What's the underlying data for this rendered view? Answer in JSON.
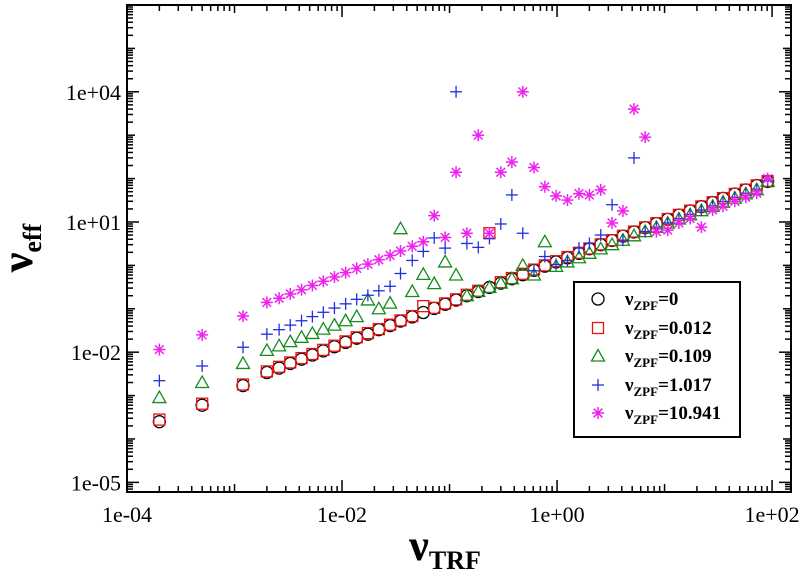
{
  "chart_data": {
    "type": "scatter",
    "title": "",
    "xscale": "log",
    "yscale": "log",
    "xlim": [
      0.0001,
      150
    ],
    "ylim": [
      6e-06,
      1000000
    ],
    "xlabel": {
      "main": "ν",
      "sub": "TRF"
    },
    "ylabel": {
      "main": "ν",
      "sub": "eff"
    },
    "xticks": [
      0.0001,
      0.01,
      1,
      100
    ],
    "xtick_labels": [
      "1e-04",
      "1e-02",
      "1e+00",
      "1e+02"
    ],
    "yticks": [
      1e-05,
      0.01,
      10,
      10000
    ],
    "ytick_labels": [
      "1e-05",
      "1e-02",
      "1e+01",
      "1e+04"
    ],
    "legend_position": "lower-right",
    "series": [
      {
        "name": "ZPF=0",
        "label_main": "ν",
        "label_sub": "ZPF",
        "label_value": "=0",
        "marker": "circle",
        "color": "#000000",
        "x": [
          0.0002,
          0.0005,
          0.0012,
          0.002,
          0.0026,
          0.0033,
          0.0042,
          0.0053,
          0.0067,
          0.0085,
          0.0108,
          0.0137,
          0.0174,
          0.022,
          0.028,
          0.035,
          0.045,
          0.057,
          0.072,
          0.091,
          0.115,
          0.145,
          0.185,
          0.235,
          0.3,
          0.38,
          0.48,
          0.61,
          0.77,
          0.98,
          1.25,
          1.6,
          2.0,
          2.55,
          3.25,
          4.1,
          5.2,
          6.6,
          8.4,
          10.7,
          13.6,
          17.3,
          22,
          28,
          35,
          45,
          57,
          72,
          91
        ],
        "y": [
          0.00025,
          0.0006,
          0.0017,
          0.0034,
          0.0043,
          0.0055,
          0.0069,
          0.0086,
          0.0107,
          0.0134,
          0.0168,
          0.021,
          0.026,
          0.033,
          0.041,
          0.052,
          0.065,
          0.082,
          0.102,
          0.127,
          0.159,
          0.2,
          0.25,
          0.31,
          0.39,
          0.49,
          0.61,
          0.77,
          0.96,
          1.2,
          1.5,
          1.9,
          2.4,
          3.0,
          3.75,
          4.7,
          5.9,
          7.4,
          9.2,
          11.5,
          14.4,
          18,
          22.5,
          28,
          35,
          44,
          55,
          69,
          86
        ]
      },
      {
        "name": "ZPF=0.012",
        "label_main": "ν",
        "label_sub": "ZPF",
        "label_value": "=0.012",
        "marker": "square",
        "color": "#e8120f",
        "x": [
          0.0002,
          0.0005,
          0.0012,
          0.002,
          0.0026,
          0.0033,
          0.0042,
          0.0053,
          0.0067,
          0.0085,
          0.0108,
          0.0137,
          0.0174,
          0.022,
          0.028,
          0.035,
          0.045,
          0.057,
          0.072,
          0.091,
          0.115,
          0.145,
          0.185,
          0.235,
          0.3,
          0.38,
          0.48,
          0.61,
          0.77,
          0.98,
          1.25,
          1.6,
          2.0,
          2.55,
          3.25,
          4.1,
          5.2,
          6.6,
          8.4,
          10.7,
          13.6,
          17.3,
          22,
          28,
          35,
          45,
          57,
          72,
          91
        ],
        "y": [
          0.00028,
          0.00065,
          0.0018,
          0.0036,
          0.0046,
          0.0058,
          0.0073,
          0.0091,
          0.0113,
          0.0141,
          0.0177,
          0.022,
          0.0275,
          0.034,
          0.043,
          0.054,
          0.068,
          0.115,
          0.105,
          0.133,
          0.165,
          0.21,
          0.26,
          5.5,
          0.41,
          0.51,
          0.64,
          0.8,
          1.0,
          1.25,
          1.56,
          1.95,
          2.45,
          3.05,
          3.8,
          4.8,
          6.0,
          7.5,
          9.4,
          11.7,
          14.6,
          18.2,
          22.8,
          28.5,
          35.5,
          44.5,
          55.5,
          70,
          87
        ]
      },
      {
        "name": "ZPF=0.109",
        "label_main": "ν",
        "label_sub": "ZPF",
        "label_value": "=0.109",
        "marker": "triangle",
        "color": "#168c1c",
        "x": [
          0.0002,
          0.0005,
          0.0012,
          0.002,
          0.0026,
          0.0033,
          0.0042,
          0.0053,
          0.0067,
          0.0085,
          0.0108,
          0.0137,
          0.0174,
          0.022,
          0.028,
          0.035,
          0.045,
          0.057,
          0.072,
          0.091,
          0.115,
          0.145,
          0.185,
          0.235,
          0.3,
          0.38,
          0.48,
          0.61,
          0.77,
          0.98,
          1.25,
          1.6,
          2.0,
          2.55,
          3.25,
          4.1,
          5.2,
          6.6,
          8.4,
          10.7,
          13.6,
          17.3,
          22,
          28,
          35,
          45,
          57,
          72,
          91
        ],
        "y": [
          0.0009,
          0.002,
          0.0055,
          0.011,
          0.014,
          0.0175,
          0.022,
          0.027,
          0.034,
          0.042,
          0.053,
          0.066,
          0.16,
          0.1,
          0.135,
          7.0,
          0.25,
          0.62,
          0.38,
          1.2,
          0.6,
          0.2,
          0.25,
          0.31,
          0.39,
          0.49,
          1.0,
          0.6,
          3.5,
          0.95,
          1.2,
          1.5,
          1.9,
          2.4,
          3.0,
          3.8,
          4.8,
          6.0,
          7.5,
          9.4,
          11.7,
          14.6,
          18.2,
          22.8,
          28.5,
          35.5,
          44.5,
          55.5,
          87
        ]
      },
      {
        "name": "ZPF=1.017",
        "label_main": "ν",
        "label_sub": "ZPF",
        "label_value": "=1.017",
        "marker": "plus",
        "color": "#1f2fe0",
        "x": [
          0.0002,
          0.0005,
          0.0012,
          0.002,
          0.0026,
          0.0033,
          0.0042,
          0.0053,
          0.0067,
          0.0085,
          0.0108,
          0.0137,
          0.0174,
          0.022,
          0.028,
          0.035,
          0.045,
          0.057,
          0.072,
          0.091,
          0.115,
          0.145,
          0.185,
          0.235,
          0.3,
          0.38,
          0.48,
          0.61,
          0.77,
          0.98,
          1.25,
          1.6,
          2.0,
          2.55,
          3.25,
          4.1,
          5.2,
          6.6,
          8.4,
          10.7,
          13.6,
          17.3,
          22,
          28,
          35,
          45,
          57,
          72,
          91
        ],
        "y": [
          0.0022,
          0.0048,
          0.013,
          0.026,
          0.033,
          0.042,
          0.053,
          0.066,
          0.083,
          0.104,
          0.13,
          0.165,
          0.205,
          0.26,
          0.33,
          0.65,
          1.3,
          2.1,
          4.3,
          2.5,
          10000,
          3.2,
          2.6,
          4.2,
          9.0,
          42,
          5.5,
          0.75,
          1.6,
          1.05,
          1.3,
          2.5,
          3.2,
          5.0,
          25,
          3.8,
          300,
          6.0,
          7.6,
          9.5,
          12,
          15,
          18.8,
          23.5,
          29.5,
          37,
          46,
          57,
          88
        ]
      },
      {
        "name": "ZPF=10.941",
        "label_main": "ν",
        "label_sub": "ZPF",
        "label_value": "=10.941",
        "marker": "star",
        "color": "#ee22ee",
        "x": [
          0.0002,
          0.0005,
          0.0012,
          0.002,
          0.0026,
          0.0033,
          0.0042,
          0.0053,
          0.0067,
          0.0085,
          0.0108,
          0.0137,
          0.0174,
          0.022,
          0.028,
          0.035,
          0.045,
          0.057,
          0.072,
          0.091,
          0.115,
          0.145,
          0.185,
          0.235,
          0.3,
          0.38,
          0.48,
          0.61,
          0.77,
          0.98,
          1.25,
          1.6,
          2.0,
          2.55,
          3.25,
          4.1,
          5.2,
          6.6,
          8.4,
          10.7,
          13.6,
          17.3,
          22,
          28,
          35,
          45,
          57,
          72,
          91
        ],
        "y": [
          0.0115,
          0.025,
          0.068,
          0.14,
          0.175,
          0.22,
          0.275,
          0.345,
          0.43,
          0.54,
          0.68,
          0.85,
          1.07,
          1.35,
          1.7,
          2.15,
          2.75,
          3.5,
          14,
          4.4,
          140,
          5.5,
          1000,
          5.5,
          140,
          240,
          10000,
          180,
          65,
          40,
          32,
          45,
          42,
          55,
          9.5,
          18,
          4000,
          900,
          6.0,
          6.5,
          9.5,
          12,
          7.6,
          19,
          23,
          30,
          37,
          46,
          100
        ]
      }
    ]
  }
}
